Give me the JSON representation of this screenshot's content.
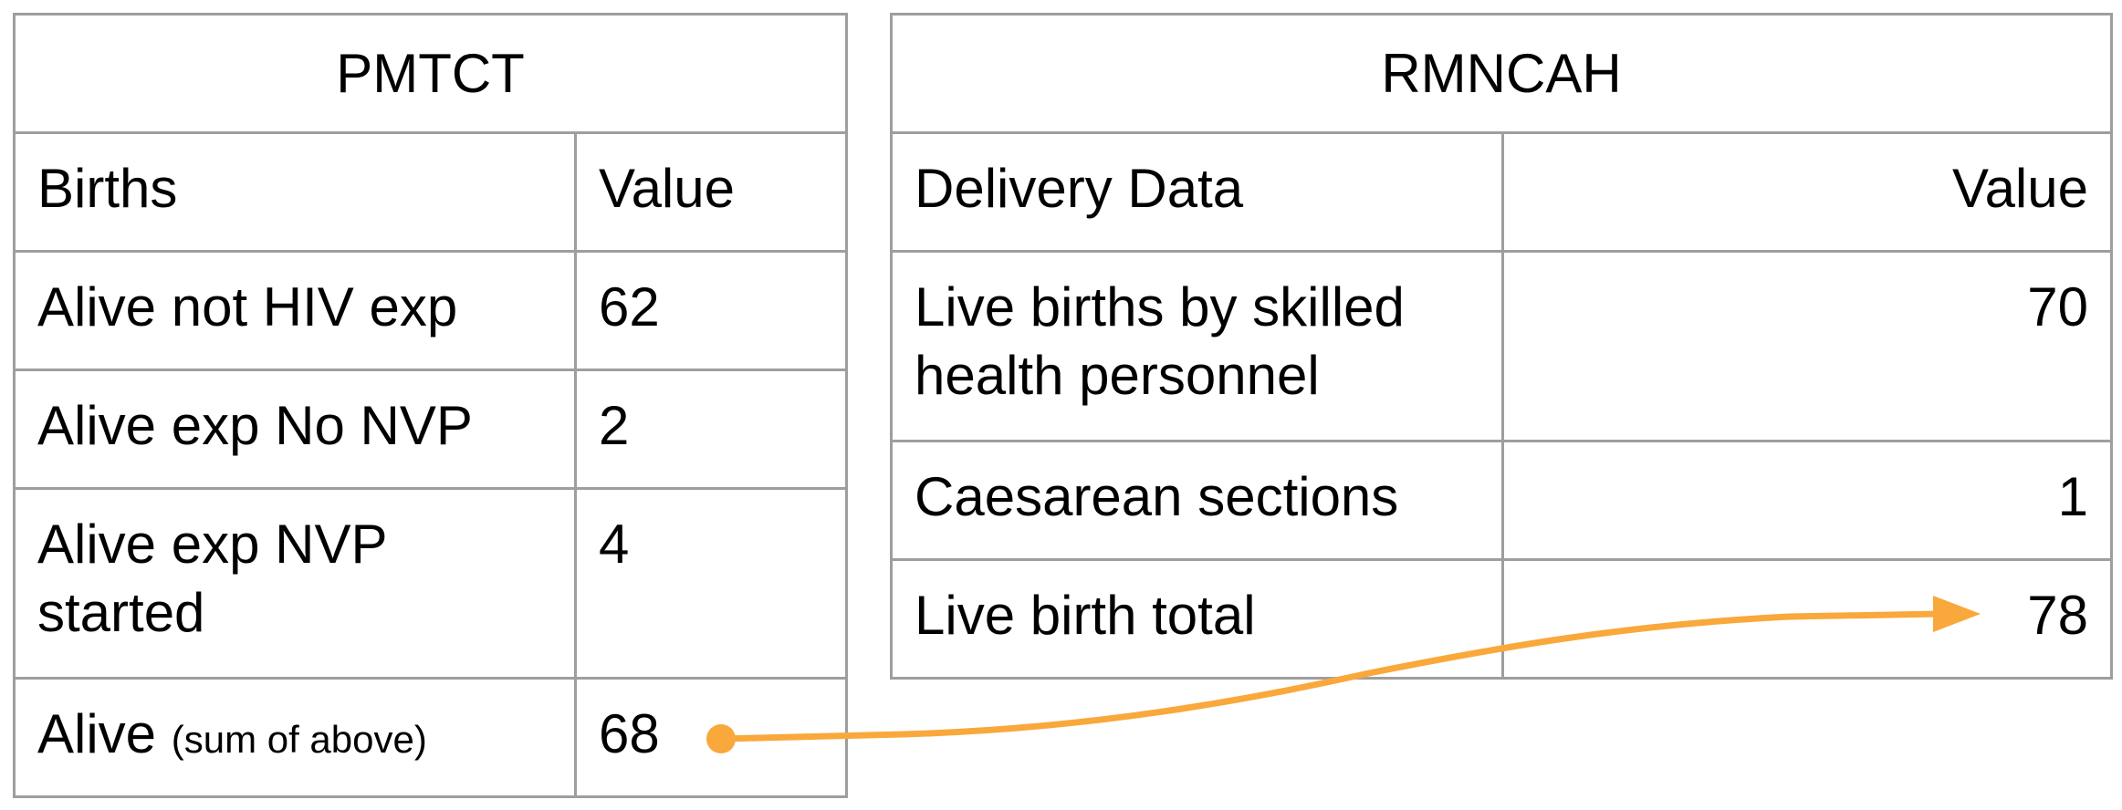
{
  "pmtct": {
    "title": "PMTCT",
    "header": {
      "label": "Births",
      "value": "Value"
    },
    "rows": [
      {
        "label": "Alive not HIV exp",
        "value": "62"
      },
      {
        "label": "Alive exp No NVP",
        "value": "2"
      },
      {
        "label": "Alive exp NVP started",
        "value": "4"
      },
      {
        "label": "Alive",
        "note": "(sum of above)",
        "value": "68"
      }
    ]
  },
  "rmncah": {
    "title": "RMNCAH",
    "header": {
      "label": "Delivery Data",
      "value": "Value"
    },
    "rows": [
      {
        "label": "Live births by skilled health personnel",
        "value": "70"
      },
      {
        "label": "Caesarean sections",
        "value": "1"
      },
      {
        "label": "Live birth total",
        "value": "78"
      }
    ]
  },
  "connector": {
    "color": "#f9a83b",
    "from": "pmtct.rows.3.value",
    "to": "rmncah.rows.2.value"
  }
}
